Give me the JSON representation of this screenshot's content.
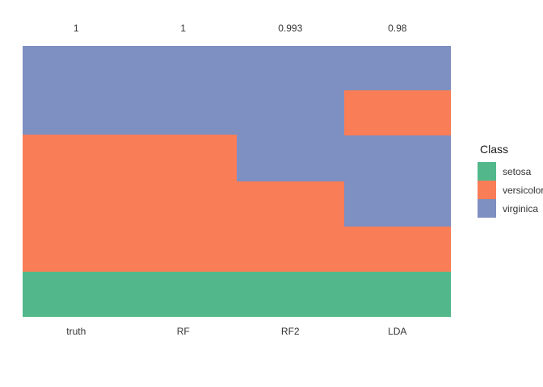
{
  "chart_data": {
    "type": "heatmap",
    "title": "",
    "xlabel": "",
    "ylabel": "",
    "columns": [
      "truth",
      "RF",
      "RF2",
      "LDA"
    ],
    "top_labels": [
      "1",
      "1",
      "0.993",
      "0.98"
    ],
    "classes": [
      {
        "name": "setosa",
        "color": "#52B88B"
      },
      {
        "name": "versicolor",
        "color": "#F97D57"
      },
      {
        "name": "virginica",
        "color": "#7E8FC2"
      }
    ],
    "segments": {
      "truth": [
        {
          "class": "virginica",
          "from": 0,
          "to": 0.328
        },
        {
          "class": "versicolor",
          "from": 0.328,
          "to": 0.832
        },
        {
          "class": "setosa",
          "from": 0.832,
          "to": 1
        }
      ],
      "RF": [
        {
          "class": "virginica",
          "from": 0,
          "to": 0.328
        },
        {
          "class": "versicolor",
          "from": 0.328,
          "to": 0.832
        },
        {
          "class": "setosa",
          "from": 0.832,
          "to": 1
        }
      ],
      "RF2": [
        {
          "class": "virginica",
          "from": 0,
          "to": 0.5
        },
        {
          "class": "versicolor",
          "from": 0.5,
          "to": 0.832
        },
        {
          "class": "setosa",
          "from": 0.832,
          "to": 1
        }
      ],
      "LDA": [
        {
          "class": "virginica",
          "from": 0,
          "to": 0.164
        },
        {
          "class": "versicolor",
          "from": 0.164,
          "to": 0.331
        },
        {
          "class": "virginica",
          "from": 0.331,
          "to": 0.668
        },
        {
          "class": "versicolor",
          "from": 0.668,
          "to": 0.832
        },
        {
          "class": "setosa",
          "from": 0.832,
          "to": 1
        }
      ]
    },
    "legend": {
      "title": "Class",
      "position": "right",
      "entries": [
        "setosa",
        "versicolor",
        "virginica"
      ]
    },
    "grid": "off"
  }
}
